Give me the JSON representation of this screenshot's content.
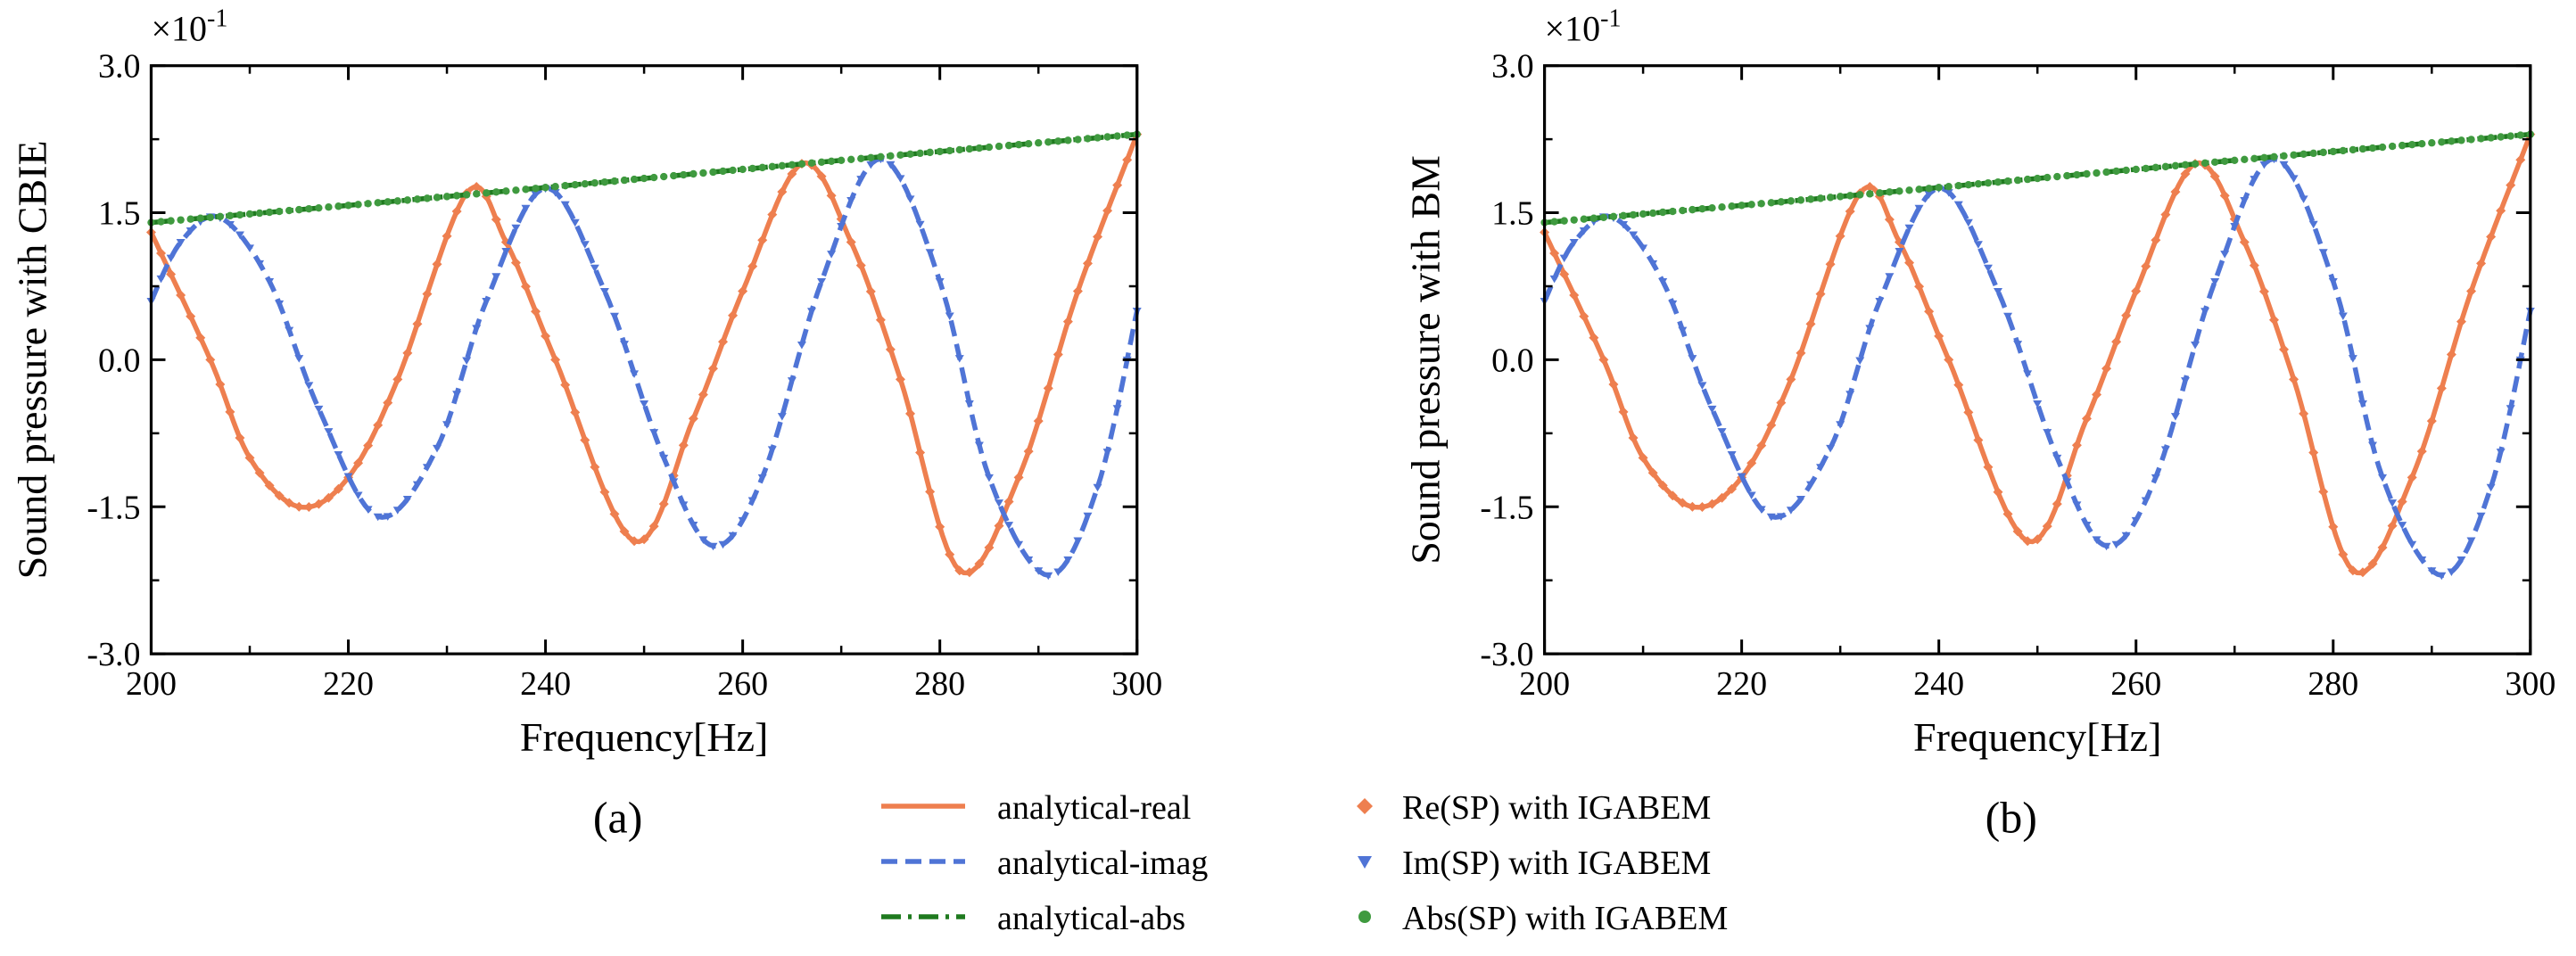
{
  "chart_data": [
    {
      "type": "line",
      "panel_label": "(a)",
      "xlabel": "Frequency[Hz]",
      "ylabel": "Sound pressure with CBIE",
      "y_multiplier": "×10",
      "y_multiplier_exp": "-1",
      "xlim": [
        200,
        300
      ],
      "ylim": [
        -3.0,
        3.0
      ],
      "x_ticks": [
        200,
        220,
        240,
        260,
        280,
        300
      ],
      "x_tick_labels": [
        "200",
        "220",
        "240",
        "260",
        "280",
        "300"
      ],
      "y_ticks": [
        3.0,
        1.5,
        0.0,
        -1.5,
        -3.0
      ],
      "y_tick_labels": [
        "3.0",
        "1.5",
        "0.0",
        "-1.5",
        "-3.0"
      ],
      "grid": false,
      "series": [
        {
          "key": "real",
          "curve": "analytical-real",
          "marker_series": "Re(SP) with IGABEM",
          "x": [
            200,
            206,
            210,
            215,
            220,
            225,
            232,
            236,
            241,
            249,
            255,
            260,
            266,
            271,
            276,
            282,
            288,
            294,
            300
          ],
          "y": [
            1.3,
            0.0,
            -1.0,
            -1.5,
            -1.2,
            -0.2,
            1.7,
            1.2,
            0.0,
            -1.85,
            -0.6,
            0.7,
            2.0,
            1.2,
            -0.2,
            -2.15,
            -1.2,
            0.7,
            2.3
          ]
        },
        {
          "key": "imag",
          "curve": "analytical-imag",
          "marker_series": "Im(SP) with IGABEM",
          "x": [
            200,
            203,
            207,
            212,
            217,
            223,
            229,
            234,
            240,
            246,
            252,
            257,
            262,
            268,
            274,
            280,
            285,
            291,
            296,
            300
          ],
          "y": [
            0.6,
            1.2,
            1.45,
            0.8,
            -0.5,
            -1.6,
            -0.9,
            0.6,
            1.75,
            0.7,
            -1.0,
            -1.9,
            -1.2,
            0.8,
            2.05,
            0.8,
            -1.2,
            -2.2,
            -1.3,
            0.5
          ]
        },
        {
          "key": "abs",
          "curve": "analytical-abs",
          "marker_series": "Abs(SP) with IGABEM",
          "x": [
            200,
            225,
            250,
            275,
            300
          ],
          "y": [
            1.4,
            1.62,
            1.85,
            2.08,
            2.3
          ]
        }
      ]
    },
    {
      "type": "line",
      "panel_label": "(b)",
      "xlabel": "Frequency[Hz]",
      "ylabel": "Sound pressure with BM",
      "y_multiplier": "×10",
      "y_multiplier_exp": "-1",
      "xlim": [
        200,
        300
      ],
      "ylim": [
        -3.0,
        3.0
      ],
      "x_ticks": [
        200,
        220,
        240,
        260,
        280,
        300
      ],
      "x_tick_labels": [
        "200",
        "220",
        "240",
        "260",
        "280",
        "300"
      ],
      "y_ticks": [
        3.0,
        1.5,
        0.0,
        -1.5,
        -3.0
      ],
      "y_tick_labels": [
        "3.0",
        "1.5",
        "0.0",
        "-1.5",
        "-3.0"
      ],
      "grid": false,
      "series": [
        {
          "key": "real",
          "curve": "analytical-real",
          "marker_series": "Re(SP) with IGABEM",
          "x": [
            200,
            206,
            210,
            215,
            220,
            225,
            232,
            236,
            241,
            249,
            255,
            260,
            266,
            271,
            276,
            282,
            288,
            294,
            300
          ],
          "y": [
            1.3,
            0.0,
            -1.0,
            -1.5,
            -1.2,
            -0.2,
            1.7,
            1.2,
            0.0,
            -1.85,
            -0.6,
            0.7,
            2.0,
            1.2,
            -0.2,
            -2.15,
            -1.2,
            0.7,
            2.3
          ]
        },
        {
          "key": "imag",
          "curve": "analytical-imag",
          "marker_series": "Im(SP) with IGABEM",
          "x": [
            200,
            203,
            207,
            212,
            217,
            223,
            229,
            234,
            240,
            246,
            252,
            257,
            262,
            268,
            274,
            280,
            285,
            291,
            296,
            300
          ],
          "y": [
            0.6,
            1.2,
            1.45,
            0.8,
            -0.5,
            -1.6,
            -0.9,
            0.6,
            1.75,
            0.7,
            -1.0,
            -1.9,
            -1.2,
            0.8,
            2.05,
            0.8,
            -1.2,
            -2.2,
            -1.3,
            0.5
          ]
        },
        {
          "key": "abs",
          "curve": "analytical-abs",
          "marker_series": "Abs(SP) with IGABEM",
          "x": [
            200,
            225,
            250,
            275,
            300
          ],
          "y": [
            1.4,
            1.62,
            1.85,
            2.08,
            2.3
          ]
        }
      ]
    }
  ],
  "legend": {
    "placement": "bottom-center",
    "lines": [
      {
        "key": "real",
        "label": "analytical-real",
        "style": "solid"
      },
      {
        "key": "imag",
        "label": "analytical-imag",
        "style": "dashed"
      },
      {
        "key": "abs",
        "label": "analytical-abs",
        "style": "dash-dot"
      }
    ],
    "markers": [
      {
        "key": "real",
        "label": "Re(SP) with IGABEM",
        "marker": "diamond"
      },
      {
        "key": "imag",
        "label": "Im(SP) with IGABEM",
        "marker": "triangle-down"
      },
      {
        "key": "abs",
        "label": "Abs(SP) with IGABEM",
        "marker": "circle"
      }
    ]
  },
  "colors": {
    "real": "#ee7f4f",
    "imag": "#4f74d6",
    "abs": "#1f7a1f",
    "abs_marker": "#3f9a3f",
    "axis": "#000000"
  }
}
